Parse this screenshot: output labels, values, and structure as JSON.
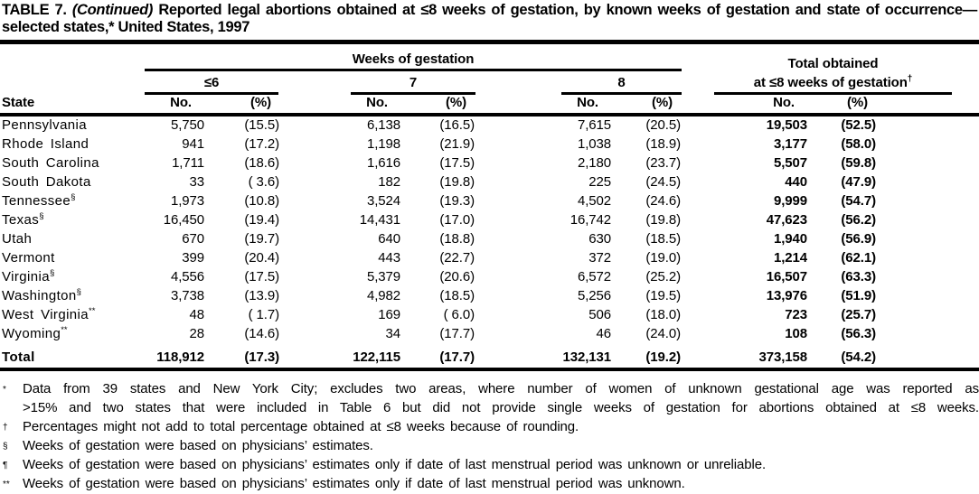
{
  "title": {
    "label": "TABLE 7.",
    "continued": "(Continued)",
    "text": "Reported legal abortions obtained at ≤8 weeks of gestation, by known weeks of gestation and state of occurrence— selected states,* United States, 1997"
  },
  "table": {
    "corner_label": "State",
    "weeks_group_label": "Weeks of gestation",
    "total_group_label_line1": "Total obtained",
    "total_group_label_line2": "at ≤8 weeks of gestation",
    "total_group_marker": "†",
    "subgroups": {
      "w6": "≤6",
      "w7": "7",
      "w8": "8"
    },
    "no_label": "No.",
    "pct_label": "(%)",
    "rows": [
      {
        "state": "Pennsylvania",
        "marker": "",
        "w6_no": "5,750",
        "w6_pct": "(15.5)",
        "w7_no": "6,138",
        "w7_pct": "(16.5)",
        "w8_no": "7,615",
        "w8_pct": "(20.5)",
        "tot_no": "19,503",
        "tot_pct": "(52.5)"
      },
      {
        "state": "Rhode Island",
        "marker": "",
        "w6_no": "941",
        "w6_pct": "(17.2)",
        "w7_no": "1,198",
        "w7_pct": "(21.9)",
        "w8_no": "1,038",
        "w8_pct": "(18.9)",
        "tot_no": "3,177",
        "tot_pct": "(58.0)"
      },
      {
        "state": "South Carolina",
        "marker": "",
        "w6_no": "1,711",
        "w6_pct": "(18.6)",
        "w7_no": "1,616",
        "w7_pct": "(17.5)",
        "w8_no": "2,180",
        "w8_pct": "(23.7)",
        "tot_no": "5,507",
        "tot_pct": "(59.8)"
      },
      {
        "state": "South Dakota",
        "marker": "",
        "w6_no": "33",
        "w6_pct": "( 3.6)",
        "w7_no": "182",
        "w7_pct": "(19.8)",
        "w8_no": "225",
        "w8_pct": "(24.5)",
        "tot_no": "440",
        "tot_pct": "(47.9)"
      },
      {
        "state": "Tennessee",
        "marker": "§",
        "w6_no": "1,973",
        "w6_pct": "(10.8)",
        "w7_no": "3,524",
        "w7_pct": "(19.3)",
        "w8_no": "4,502",
        "w8_pct": "(24.6)",
        "tot_no": "9,999",
        "tot_pct": "(54.7)"
      },
      {
        "state": "Texas",
        "marker": "§",
        "w6_no": "16,450",
        "w6_pct": "(19.4)",
        "w7_no": "14,431",
        "w7_pct": "(17.0)",
        "w8_no": "16,742",
        "w8_pct": "(19.8)",
        "tot_no": "47,623",
        "tot_pct": "(56.2)"
      },
      {
        "state": "Utah",
        "marker": "",
        "w6_no": "670",
        "w6_pct": "(19.7)",
        "w7_no": "640",
        "w7_pct": "(18.8)",
        "w8_no": "630",
        "w8_pct": "(18.5)",
        "tot_no": "1,940",
        "tot_pct": "(56.9)"
      },
      {
        "state": "Vermont",
        "marker": "",
        "w6_no": "399",
        "w6_pct": "(20.4)",
        "w7_no": "443",
        "w7_pct": "(22.7)",
        "w8_no": "372",
        "w8_pct": "(19.0)",
        "tot_no": "1,214",
        "tot_pct": "(62.1)"
      },
      {
        "state": "Virginia",
        "marker": "§",
        "w6_no": "4,556",
        "w6_pct": "(17.5)",
        "w7_no": "5,379",
        "w7_pct": "(20.6)",
        "w8_no": "6,572",
        "w8_pct": "(25.2)",
        "tot_no": "16,507",
        "tot_pct": "(63.3)"
      },
      {
        "state": "Washington",
        "marker": "§",
        "w6_no": "3,738",
        "w6_pct": "(13.9)",
        "w7_no": "4,982",
        "w7_pct": "(18.5)",
        "w8_no": "5,256",
        "w8_pct": "(19.5)",
        "tot_no": "13,976",
        "tot_pct": "(51.9)"
      },
      {
        "state": "West Virginia",
        "marker": "**",
        "w6_no": "48",
        "w6_pct": "( 1.7)",
        "w7_no": "169",
        "w7_pct": "( 6.0)",
        "w8_no": "506",
        "w8_pct": "(18.0)",
        "tot_no": "723",
        "tot_pct": "(25.7)"
      },
      {
        "state": "Wyoming",
        "marker": "**",
        "w6_no": "28",
        "w6_pct": "(14.6)",
        "w7_no": "34",
        "w7_pct": "(17.7)",
        "w8_no": "46",
        "w8_pct": "(24.0)",
        "tot_no": "108",
        "tot_pct": "(56.3)"
      }
    ],
    "total_row": {
      "state": "Total",
      "marker": "",
      "w6_no": "118,912",
      "w6_pct": "(17.3)",
      "w7_no": "122,115",
      "w7_pct": "(17.7)",
      "w8_no": "132,131",
      "w8_pct": "(19.2)",
      "tot_no": "373,158",
      "tot_pct": "(54.2)"
    }
  },
  "footnotes": [
    {
      "marker": "*",
      "lines": [
        "Data from 39 states and New York City; excludes two areas, where number of women of unknown gestational age was reported as",
        ">15% and two states that were included in Table 6 but did not provide single weeks of gestation for abortions obtained at ≤8 weeks."
      ]
    },
    {
      "marker": "†",
      "lines": [
        "Percentages might not add to total percentage obtained at ≤8 weeks because of rounding."
      ]
    },
    {
      "marker": "§",
      "lines": [
        "Weeks of gestation were based on physicians’ estimates."
      ]
    },
    {
      "marker": "¶",
      "lines": [
        "Weeks of gestation were based on physicians’ estimates only if date of last menstrual period was unknown or unreliable."
      ]
    },
    {
      "marker": "**",
      "lines": [
        "Weeks of gestation were based on physicians’ estimates only if date of last menstrual period was unknown."
      ]
    }
  ]
}
